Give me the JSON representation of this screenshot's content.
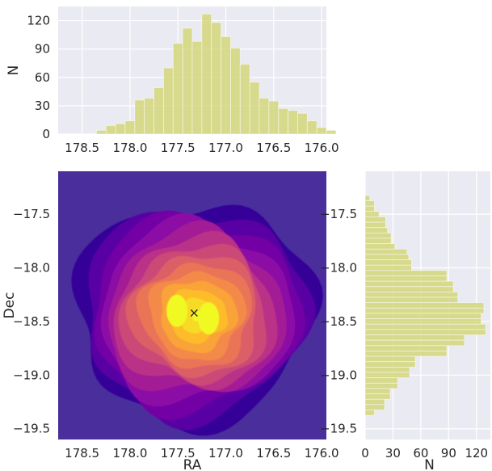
{
  "chart_data": [
    {
      "id": "ra_hist",
      "type": "bar",
      "orientation": "vertical",
      "xlabel": "",
      "ylabel": "N",
      "xlim": [
        178.75,
        175.95
      ],
      "ylim": [
        0,
        135
      ],
      "xticks": [
        "178.5",
        "178.0",
        "177.5",
        "177.0",
        "176.5",
        "176.0"
      ],
      "yticks": [
        "0",
        "30",
        "60",
        "90",
        "120"
      ],
      "bin_width": 0.1,
      "bin_centers": [
        178.3,
        178.2,
        178.1,
        178.0,
        177.9,
        177.8,
        177.7,
        177.6,
        177.5,
        177.4,
        177.3,
        177.2,
        177.1,
        177.0,
        176.9,
        176.8,
        176.7,
        176.6,
        176.5,
        176.4,
        176.3,
        176.2,
        176.1,
        176.0,
        175.9,
        175.8,
        175.7,
        175.6
      ],
      "values": [
        4,
        9,
        11,
        14,
        36,
        38,
        49,
        70,
        96,
        112,
        98,
        127,
        118,
        103,
        91,
        74,
        55,
        38,
        35,
        27,
        25,
        22,
        14,
        7,
        4,
        0,
        0,
        0
      ],
      "color": "#d4d67a",
      "grid": true
    },
    {
      "id": "kde",
      "type": "heatmap",
      "subtype": "filled_contour_density",
      "xlabel": "RA",
      "ylabel": "Dec",
      "xlim": [
        178.75,
        175.95
      ],
      "ylim": [
        -19.6,
        -17.1
      ],
      "xticks": [
        "178.5",
        "178.0",
        "177.5",
        "177.0",
        "176.5",
        "176.0"
      ],
      "yticks": [
        "-17.5",
        "-18.0",
        "-18.5",
        "-19.0",
        "-19.5"
      ],
      "colormap": "plasma",
      "levels": 14,
      "marker": {
        "symbol": "×",
        "ra": 177.33,
        "dec": -18.42
      },
      "background_color": "#4a2f9c"
    },
    {
      "id": "dec_hist",
      "type": "bar",
      "orientation": "horizontal",
      "xlabel": "N",
      "ylabel": "",
      "xlim": [
        0,
        135
      ],
      "ylim": [
        -19.6,
        -17.1
      ],
      "xticks": [
        "0",
        "30",
        "60",
        "90",
        "120"
      ],
      "yticks": [
        "-17.5",
        "-18.0",
        "-18.5",
        "-19.0",
        "-19.5"
      ],
      "bin_height": 0.05,
      "bin_centers": [
        -17.35,
        -17.4,
        -17.45,
        -17.5,
        -17.55,
        -17.6,
        -17.65,
        -17.7,
        -17.75,
        -17.8,
        -17.85,
        -17.9,
        -17.95,
        -18.0,
        -18.05,
        -18.1,
        -18.15,
        -18.2,
        -18.25,
        -18.3,
        -18.35,
        -18.4,
        -18.45,
        -18.5,
        -18.55,
        -18.6,
        -18.65,
        -18.7,
        -18.75,
        -18.8,
        -18.85,
        -18.9,
        -18.95,
        -19.0,
        -19.05,
        -19.1,
        -19.15,
        -19.2,
        -19.25,
        -19.3,
        -19.35
      ],
      "values": [
        5,
        10,
        10,
        15,
        22,
        22,
        24,
        28,
        28,
        32,
        45,
        47,
        50,
        50,
        88,
        88,
        95,
        95,
        100,
        100,
        128,
        128,
        125,
        125,
        130,
        130,
        107,
        107,
        88,
        88,
        54,
        54,
        48,
        48,
        35,
        35,
        27,
        27,
        21,
        21,
        10
      ],
      "color": "#d4d67a",
      "grid": true
    }
  ]
}
